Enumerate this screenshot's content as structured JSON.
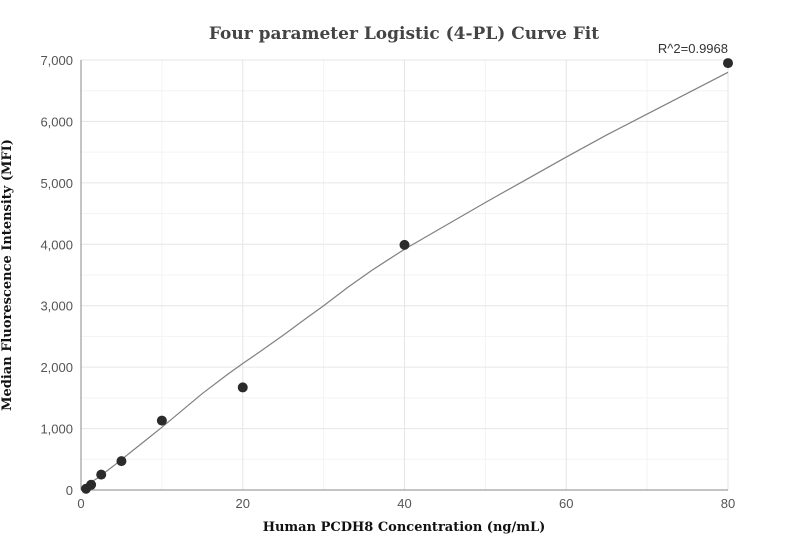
{
  "chart_data": {
    "type": "scatter",
    "title": "Four parameter Logistic (4-PL) Curve Fit",
    "xlabel": "Human PCDH8 Concentration (ng/mL)",
    "ylabel": "Median Fluorescence Intensity (MFI)",
    "xlim": [
      0,
      80
    ],
    "ylim": [
      0,
      7000
    ],
    "xticks": [
      0,
      20,
      40,
      60,
      80
    ],
    "yticks": [
      0,
      1000,
      2000,
      3000,
      4000,
      5000,
      6000,
      7000
    ],
    "xtick_labels": [
      "0",
      "20",
      "40",
      "60",
      "80"
    ],
    "ytick_labels": [
      "0",
      "1,000",
      "2,000",
      "3,000",
      "4,000",
      "5,000",
      "6,000",
      "7,000"
    ],
    "grid": true,
    "series": [
      {
        "type": "scatter",
        "x": [
          0.625,
          1.25,
          2.5,
          5,
          10,
          20,
          40,
          80
        ],
        "y": [
          20,
          85,
          250,
          470,
          1130,
          1670,
          3990,
          6950
        ]
      },
      {
        "type": "line",
        "x": [
          0,
          2,
          4,
          6,
          8,
          10,
          12,
          15,
          18,
          20,
          22,
          25,
          28,
          30,
          33,
          36,
          40,
          45,
          50,
          55,
          60,
          65,
          70,
          75,
          80
        ],
        "y": [
          30,
          190,
          390,
          600,
          810,
          1020,
          1240,
          1570,
          1870,
          2060,
          2240,
          2520,
          2810,
          3000,
          3300,
          3580,
          3920,
          4300,
          4680,
          5050,
          5420,
          5780,
          6120,
          6460,
          6800
        ]
      }
    ],
    "annotations": [
      {
        "text": "R^2=0.9968",
        "x": 80,
        "y": 6950
      }
    ]
  }
}
